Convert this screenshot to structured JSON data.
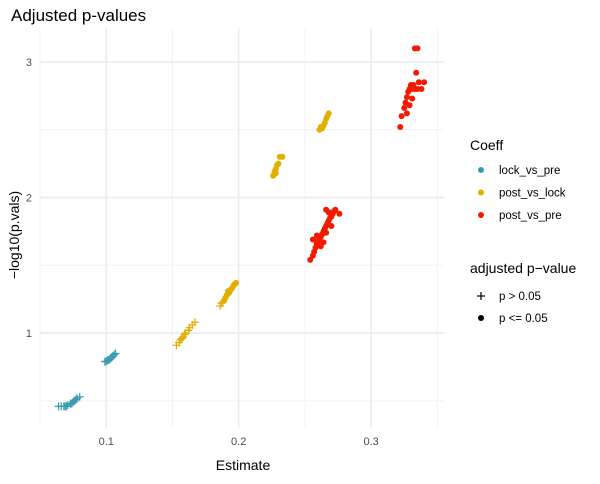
{
  "chart_data": {
    "type": "scatter",
    "title": "Adjusted p-values",
    "xlabel": "Estimate",
    "ylabel": "−log10(p.vals)",
    "xlim": [
      0.05,
      0.355
    ],
    "ylim": [
      0.3,
      3.25
    ],
    "x_ticks": [
      0.1,
      0.2,
      0.3
    ],
    "x_tick_labels": [
      "0.1",
      "0.2",
      "0.3"
    ],
    "y_ticks": [
      1,
      2,
      3
    ],
    "y_tick_labels": [
      "1",
      "2",
      "3"
    ],
    "grid": true,
    "legend_position": "right",
    "legends": [
      {
        "title": "Coeff",
        "entries": [
          {
            "label": "lock_vs_pre",
            "color": "#3a9ab2"
          },
          {
            "label": "post_vs_lock",
            "color": "#e1af00"
          },
          {
            "label": "post_vs_pre",
            "color": "#f21a00"
          }
        ]
      },
      {
        "title": "adjusted p−value",
        "entries": [
          {
            "label": "p >  0.05",
            "shape": "plus"
          },
          {
            "label": "p <= 0.05",
            "shape": "circle"
          }
        ]
      }
    ],
    "series": [
      {
        "name": "lock_vs_pre",
        "color": "#3a9ab2",
        "groups": [
          {
            "shape": "plus",
            "points": [
              [
                0.064,
                0.46
              ],
              [
                0.066,
                0.46
              ],
              [
                0.068,
                0.46
              ],
              [
                0.07,
                0.46
              ],
              [
                0.071,
                0.47
              ],
              [
                0.073,
                0.48
              ],
              [
                0.074,
                0.48
              ],
              [
                0.075,
                0.49
              ],
              [
                0.076,
                0.5
              ],
              [
                0.077,
                0.51
              ],
              [
                0.078,
                0.52
              ],
              [
                0.08,
                0.53
              ],
              [
                0.069,
                0.46
              ]
            ]
          },
          {
            "shape": "plus",
            "points": [
              [
                0.099,
                0.79
              ],
              [
                0.101,
                0.8
              ],
              [
                0.102,
                0.8
              ],
              [
                0.103,
                0.81
              ],
              [
                0.104,
                0.82
              ],
              [
                0.105,
                0.83
              ],
              [
                0.106,
                0.84
              ],
              [
                0.107,
                0.85
              ],
              [
                0.1,
                0.79
              ]
            ]
          }
        ]
      },
      {
        "name": "post_vs_lock",
        "color": "#e1af00",
        "groups": [
          {
            "shape": "plus",
            "points": [
              [
                0.153,
                0.91
              ],
              [
                0.155,
                0.93
              ],
              [
                0.156,
                0.95
              ],
              [
                0.158,
                0.97
              ],
              [
                0.159,
                0.99
              ],
              [
                0.16,
                1.0
              ],
              [
                0.162,
                1.02
              ],
              [
                0.163,
                1.04
              ],
              [
                0.165,
                1.06
              ],
              [
                0.167,
                1.08
              ],
              [
                0.157,
                0.96
              ]
            ]
          },
          {
            "shape": "plus",
            "points": [
              [
                0.186,
                1.2
              ],
              [
                0.187,
                1.22
              ],
              [
                0.188,
                1.23
              ]
            ]
          },
          {
            "shape": "circle",
            "points": [
              [
                0.189,
                1.24
              ],
              [
                0.19,
                1.26
              ],
              [
                0.191,
                1.28
              ],
              [
                0.192,
                1.29
              ],
              [
                0.193,
                1.3
              ],
              [
                0.194,
                1.32
              ],
              [
                0.195,
                1.33
              ],
              [
                0.196,
                1.35
              ],
              [
                0.197,
                1.36
              ],
              [
                0.198,
                1.37
              ],
              [
                0.192,
                1.31
              ]
            ]
          },
          {
            "shape": "circle",
            "points": [
              [
                0.226,
                2.16
              ],
              [
                0.227,
                2.19
              ],
              [
                0.228,
                2.21
              ],
              [
                0.229,
                2.24
              ],
              [
                0.23,
                2.25
              ],
              [
                0.231,
                2.3
              ],
              [
                0.233,
                2.3
              ],
              [
                0.228,
                2.18
              ]
            ]
          },
          {
            "shape": "circle",
            "points": [
              [
                0.261,
                2.5
              ],
              [
                0.263,
                2.51
              ],
              [
                0.264,
                2.53
              ],
              [
                0.265,
                2.55
              ],
              [
                0.266,
                2.58
              ],
              [
                0.267,
                2.6
              ],
              [
                0.268,
                2.62
              ],
              [
                0.262,
                2.52
              ]
            ]
          }
        ]
      },
      {
        "name": "post_vs_pre",
        "color": "#f21a00",
        "groups": [
          {
            "shape": "circle",
            "points": [
              [
                0.254,
                1.54
              ],
              [
                0.256,
                1.57
              ],
              [
                0.257,
                1.6
              ],
              [
                0.258,
                1.63
              ],
              [
                0.259,
                1.66
              ],
              [
                0.26,
                1.68
              ],
              [
                0.261,
                1.7
              ],
              [
                0.262,
                1.71
              ],
              [
                0.263,
                1.73
              ],
              [
                0.264,
                1.75
              ],
              [
                0.265,
                1.77
              ],
              [
                0.266,
                1.79
              ],
              [
                0.267,
                1.81
              ],
              [
                0.268,
                1.83
              ],
              [
                0.269,
                1.85
              ],
              [
                0.27,
                1.86
              ],
              [
                0.271,
                1.88
              ],
              [
                0.272,
                1.9
              ],
              [
                0.273,
                1.91
              ],
              [
                0.266,
                1.91
              ],
              [
                0.268,
                1.89
              ],
              [
                0.256,
                1.69
              ],
              [
                0.259,
                1.72
              ],
              [
                0.262,
                1.64
              ],
              [
                0.264,
                1.67
              ],
              [
                0.266,
                1.74
              ],
              [
                0.27,
                1.79
              ],
              [
                0.276,
                1.88
              ]
            ]
          },
          {
            "shape": "circle",
            "points": [
              [
                0.322,
                2.52
              ],
              [
                0.323,
                2.6
              ],
              [
                0.325,
                2.66
              ],
              [
                0.326,
                2.7
              ],
              [
                0.327,
                2.74
              ],
              [
                0.328,
                2.78
              ],
              [
                0.329,
                2.8
              ],
              [
                0.33,
                2.83
              ],
              [
                0.331,
                2.8
              ],
              [
                0.332,
                2.83
              ],
              [
                0.333,
                2.8
              ],
              [
                0.334,
                2.92
              ],
              [
                0.335,
                2.8
              ],
              [
                0.336,
                2.85
              ],
              [
                0.338,
                2.8
              ],
              [
                0.34,
                2.85
              ],
              [
                0.333,
                3.1
              ],
              [
                0.335,
                3.1
              ],
              [
                0.327,
                2.62
              ],
              [
                0.329,
                2.68
              ],
              [
                0.331,
                2.73
              ]
            ]
          }
        ]
      }
    ]
  }
}
